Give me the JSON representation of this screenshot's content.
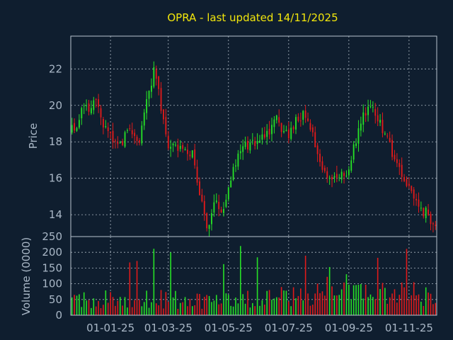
{
  "chart_data": {
    "title": "OPRA - last updated 14/11/2025",
    "colors": {
      "background": "#0f1e2f",
      "up": "#26e026",
      "down": "#e01a1a",
      "title": "#f2e60c",
      "text": "#a9b7c6"
    },
    "grid": true,
    "price_panel": {
      "type": "candlestick",
      "ylabel": "Price",
      "ylim": [
        12.8,
        23.8
      ],
      "yticks": [
        14,
        16,
        18,
        20,
        22
      ]
    },
    "volume_panel": {
      "type": "bar",
      "ylabel": "Volume (0000)",
      "ylim": [
        0,
        250
      ],
      "yticks": [
        0,
        50,
        100,
        150,
        200,
        250
      ]
    },
    "x_axis": {
      "tick_labels": [
        "01-01-25",
        "01-03-25",
        "01-05-25",
        "01-07-25",
        "01-09-25",
        "01-11-25"
      ],
      "tick_index": [
        16,
        40,
        65,
        90,
        115,
        140
      ],
      "count": 152
    },
    "price_keypoints": [
      [
        0,
        18.6
      ],
      [
        5,
        19.8
      ],
      [
        10,
        20.0
      ],
      [
        15,
        18.4
      ],
      [
        20,
        18.1
      ],
      [
        24,
        18.4
      ],
      [
        28,
        18.0
      ],
      [
        34,
        22.1
      ],
      [
        40,
        17.8
      ],
      [
        45,
        17.5
      ],
      [
        50,
        17.2
      ],
      [
        54,
        14.5
      ],
      [
        56,
        13.4
      ],
      [
        60,
        14.8
      ],
      [
        62,
        14.3
      ],
      [
        65,
        15.3
      ],
      [
        70,
        17.8
      ],
      [
        75,
        17.9
      ],
      [
        80,
        18.2
      ],
      [
        85,
        19.1
      ],
      [
        90,
        18.5
      ],
      [
        96,
        19.6
      ],
      [
        100,
        18.3
      ],
      [
        105,
        16.2
      ],
      [
        110,
        16.0
      ],
      [
        115,
        16.6
      ],
      [
        120,
        19.2
      ],
      [
        125,
        20.1
      ],
      [
        130,
        18.4
      ],
      [
        135,
        16.6
      ],
      [
        140,
        15.5
      ],
      [
        146,
        14.2
      ],
      [
        151,
        13.5
      ]
    ],
    "volume_profile": [
      [
        0,
        45
      ],
      [
        30,
        55
      ],
      [
        60,
        45
      ],
      [
        75,
        50
      ],
      [
        85,
        55
      ],
      [
        110,
        90
      ],
      [
        120,
        85
      ],
      [
        140,
        70
      ],
      [
        151,
        60
      ]
    ]
  }
}
